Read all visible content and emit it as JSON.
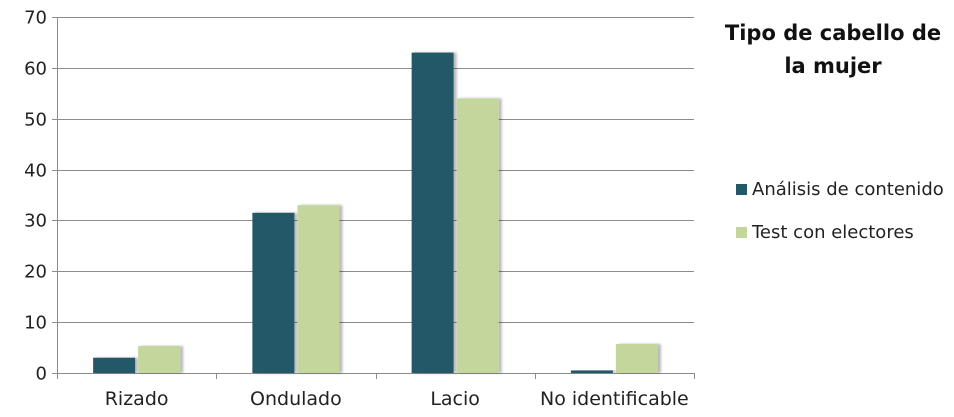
{
  "chart_data": {
    "type": "bar",
    "title": "Tipo de cabello de la mujer",
    "title_lines": [
      "Tipo de cabello de",
      "la mujer"
    ],
    "categories": [
      "Rizado",
      "Ondulado",
      "Lacio",
      "No identificable"
    ],
    "series": [
      {
        "name": "Análisis de contenido",
        "color": "#215968",
        "values": [
          3,
          31.5,
          63,
          0.5
        ]
      },
      {
        "name": "Test con electores",
        "color": "#c3d69b",
        "values": [
          5.3,
          33,
          54,
          5.7
        ]
      }
    ],
    "ylim": [
      0,
      70
    ],
    "yticks": [
      0,
      10,
      20,
      30,
      40,
      50,
      60,
      70
    ],
    "xlabel": "",
    "ylabel": "",
    "grid": true,
    "legend_position": "right"
  }
}
